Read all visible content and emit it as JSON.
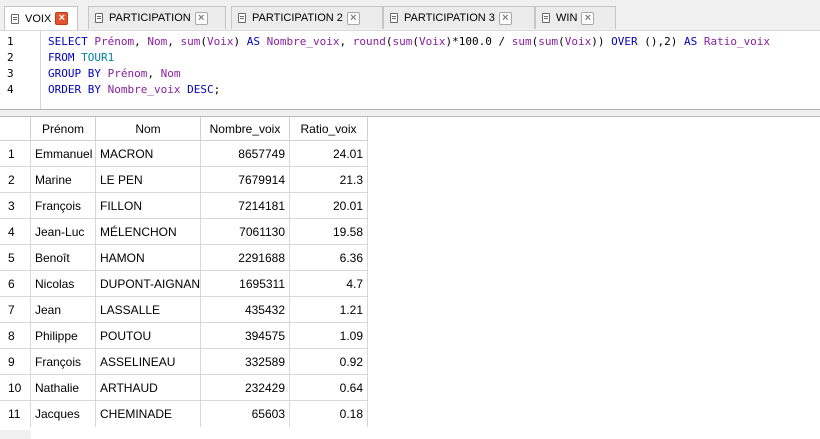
{
  "tabs": [
    {
      "label": "VOIX",
      "active": true
    },
    {
      "label": "PARTICIPATION",
      "active": false
    },
    {
      "label": "PARTICIPATION 2",
      "active": false
    },
    {
      "label": "PARTICIPATION 3",
      "active": false
    },
    {
      "label": "WIN",
      "active": false
    }
  ],
  "editor": {
    "line_numbers": [
      "1",
      "2",
      "3",
      "4"
    ],
    "lines": [
      [
        {
          "t": "SELECT",
          "c": "kw"
        },
        {
          "t": " ",
          "c": ""
        },
        {
          "t": "Prénom",
          "c": "ident"
        },
        {
          "t": ", ",
          "c": ""
        },
        {
          "t": "Nom",
          "c": "ident"
        },
        {
          "t": ", ",
          "c": ""
        },
        {
          "t": "sum",
          "c": "fn"
        },
        {
          "t": "(",
          "c": ""
        },
        {
          "t": "Voix",
          "c": "ident"
        },
        {
          "t": ") ",
          "c": ""
        },
        {
          "t": "AS",
          "c": "kw"
        },
        {
          "t": " ",
          "c": ""
        },
        {
          "t": "Nombre_voix",
          "c": "ident"
        },
        {
          "t": ", ",
          "c": ""
        },
        {
          "t": "round",
          "c": "fn"
        },
        {
          "t": "(",
          "c": ""
        },
        {
          "t": "sum",
          "c": "fn"
        },
        {
          "t": "(",
          "c": ""
        },
        {
          "t": "Voix",
          "c": "ident"
        },
        {
          "t": ")*100.0 / ",
          "c": ""
        },
        {
          "t": "sum",
          "c": "fn"
        },
        {
          "t": "(",
          "c": ""
        },
        {
          "t": "sum",
          "c": "fn"
        },
        {
          "t": "(",
          "c": ""
        },
        {
          "t": "Voix",
          "c": "ident"
        },
        {
          "t": ")) ",
          "c": ""
        },
        {
          "t": "OVER",
          "c": "kw"
        },
        {
          "t": " (),2) ",
          "c": ""
        },
        {
          "t": "AS",
          "c": "kw"
        },
        {
          "t": " ",
          "c": ""
        },
        {
          "t": "Ratio_voix",
          "c": "ident"
        }
      ],
      [
        {
          "t": "FROM",
          "c": "kw"
        },
        {
          "t": " ",
          "c": ""
        },
        {
          "t": "TOUR1",
          "c": "tbl"
        }
      ],
      [
        {
          "t": "GROUP BY",
          "c": "kw"
        },
        {
          "t": " ",
          "c": ""
        },
        {
          "t": "Prénom",
          "c": "ident"
        },
        {
          "t": ", ",
          "c": ""
        },
        {
          "t": "Nom",
          "c": "ident"
        }
      ],
      [
        {
          "t": "ORDER BY",
          "c": "kw"
        },
        {
          "t": " ",
          "c": ""
        },
        {
          "t": "Nombre_voix",
          "c": "ident"
        },
        {
          "t": " ",
          "c": ""
        },
        {
          "t": "DESC",
          "c": "kw"
        },
        {
          "t": ";",
          "c": ""
        }
      ]
    ]
  },
  "results": {
    "columns": [
      "Prénom",
      "Nom",
      "Nombre_voix",
      "Ratio_voix"
    ],
    "rows": [
      [
        "1",
        "Emmanuel",
        "MACRON",
        "8657749",
        "24.01"
      ],
      [
        "2",
        "Marine",
        "LE PEN",
        "7679914",
        "21.3"
      ],
      [
        "3",
        "François",
        "FILLON",
        "7214181",
        "20.01"
      ],
      [
        "4",
        "Jean-Luc",
        "MÉLENCHON",
        "7061130",
        "19.58"
      ],
      [
        "5",
        "Benoît",
        "HAMON",
        "2291688",
        "6.36"
      ],
      [
        "6",
        "Nicolas",
        "DUPONT-AIGNAN",
        "1695311",
        "4.7"
      ],
      [
        "7",
        "Jean",
        "LASSALLE",
        "435432",
        "1.21"
      ],
      [
        "8",
        "Philippe",
        "POUTOU",
        "394575",
        "1.09"
      ],
      [
        "9",
        "François",
        "ASSELINEAU",
        "332589",
        "0.92"
      ],
      [
        "10",
        "Nathalie",
        "ARTHAUD",
        "232429",
        "0.64"
      ],
      [
        "11",
        "Jacques",
        "CHEMINADE",
        "65603",
        "0.18"
      ]
    ]
  }
}
